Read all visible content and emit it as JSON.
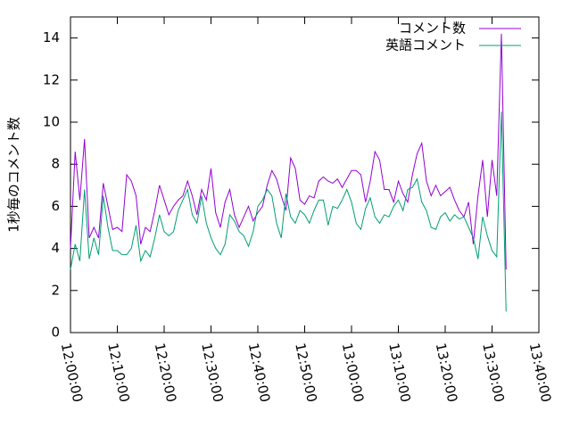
{
  "chart_data": {
    "type": "line",
    "ylabel": "1秒毎のコメント数",
    "x": [
      "12:00:00",
      "12:01:00",
      "12:02:00",
      "12:03:00",
      "12:04:00",
      "12:05:00",
      "12:06:00",
      "12:07:00",
      "12:08:00",
      "12:09:00",
      "12:10:00",
      "12:11:00",
      "12:12:00",
      "12:13:00",
      "12:14:00",
      "12:15:00",
      "12:16:00",
      "12:17:00",
      "12:18:00",
      "12:19:00",
      "12:20:00",
      "12:21:00",
      "12:22:00",
      "12:23:00",
      "12:24:00",
      "12:25:00",
      "12:26:00",
      "12:27:00",
      "12:28:00",
      "12:29:00",
      "12:30:00",
      "12:31:00",
      "12:32:00",
      "12:33:00",
      "12:34:00",
      "12:35:00",
      "12:36:00",
      "12:37:00",
      "12:38:00",
      "12:39:00",
      "12:40:00",
      "12:41:00",
      "12:42:00",
      "12:43:00",
      "12:44:00",
      "12:45:00",
      "12:46:00",
      "12:47:00",
      "12:48:00",
      "12:49:00",
      "12:50:00",
      "12:51:00",
      "12:52:00",
      "12:53:00",
      "12:54:00",
      "12:55:00",
      "12:56:00",
      "12:57:00",
      "12:58:00",
      "12:59:00",
      "13:00:00",
      "13:01:00",
      "13:02:00",
      "13:03:00",
      "13:04:00",
      "13:05:00",
      "13:06:00",
      "13:07:00",
      "13:08:00",
      "13:09:00",
      "13:10:00",
      "13:11:00",
      "13:12:00",
      "13:13:00",
      "13:14:00",
      "13:15:00",
      "13:16:00",
      "13:17:00",
      "13:18:00",
      "13:19:00",
      "13:20:00",
      "13:21:00",
      "13:22:00",
      "13:23:00",
      "13:24:00",
      "13:25:00",
      "13:26:00",
      "13:27:00",
      "13:28:00",
      "13:29:00",
      "13:30:00",
      "13:31:00",
      "13:32:00",
      "13:33:00"
    ],
    "series": [
      {
        "name": "コメント数",
        "color": "#9400d3",
        "values": [
          4.0,
          8.6,
          6.3,
          9.2,
          4.5,
          5.0,
          4.5,
          7.1,
          6.0,
          4.9,
          5.0,
          4.8,
          7.5,
          7.2,
          6.5,
          4.2,
          5.0,
          4.8,
          5.8,
          7.0,
          6.3,
          5.6,
          6.0,
          6.3,
          6.5,
          7.2,
          6.5,
          5.6,
          6.8,
          6.3,
          7.8,
          5.7,
          5.0,
          6.2,
          6.8,
          5.6,
          5.0,
          5.5,
          6.0,
          5.3,
          5.7,
          6.0,
          7.0,
          7.7,
          7.3,
          6.5,
          5.8,
          8.3,
          7.8,
          6.3,
          6.1,
          6.5,
          6.4,
          7.2,
          7.4,
          7.2,
          7.1,
          7.3,
          6.9,
          7.3,
          7.7,
          7.7,
          7.5,
          6.2,
          7.2,
          8.6,
          8.2,
          6.8,
          6.8,
          6.2,
          7.2,
          6.6,
          6.2,
          7.5,
          8.5,
          9.0,
          7.2,
          6.5,
          7.0,
          6.5,
          6.7,
          6.9,
          6.3,
          5.8,
          5.5,
          6.2,
          4.2,
          6.5,
          8.2,
          5.5,
          8.2,
          6.5,
          14.2,
          3.0
        ]
      },
      {
        "name": "英語コメント",
        "color": "#009e73",
        "values": [
          3.0,
          4.2,
          3.4,
          6.8,
          3.5,
          4.5,
          3.7,
          6.5,
          5.0,
          3.9,
          3.9,
          3.7,
          3.7,
          4.0,
          5.1,
          3.4,
          3.9,
          3.6,
          4.5,
          5.6,
          4.8,
          4.6,
          4.8,
          5.8,
          6.3,
          6.8,
          5.6,
          5.2,
          6.5,
          5.2,
          4.5,
          4.0,
          3.7,
          4.2,
          5.6,
          5.3,
          4.8,
          4.6,
          4.1,
          4.8,
          6.0,
          6.3,
          6.8,
          6.5,
          5.2,
          4.5,
          6.6,
          5.5,
          5.2,
          5.8,
          5.6,
          5.2,
          5.8,
          6.3,
          6.3,
          5.1,
          6.0,
          5.9,
          6.3,
          6.8,
          6.2,
          5.2,
          4.9,
          5.9,
          6.4,
          5.5,
          5.2,
          5.6,
          5.5,
          6.0,
          6.3,
          5.8,
          6.8,
          6.9,
          7.3,
          6.2,
          5.8,
          5.0,
          4.9,
          5.5,
          5.7,
          5.3,
          5.6,
          5.4,
          5.5,
          5.0,
          4.5,
          3.5,
          5.5,
          4.6,
          3.9,
          3.6,
          10.5,
          1.0
        ]
      }
    ],
    "xlim": [
      "12:00:00",
      "13:40:00"
    ],
    "xticks": [
      "12:00:00",
      "12:10:00",
      "12:20:00",
      "12:30:00",
      "12:40:00",
      "12:50:00",
      "13:00:00",
      "13:10:00",
      "13:20:00",
      "13:30:00",
      "13:40:00"
    ],
    "ylim": [
      0,
      15
    ],
    "yticks": [
      0,
      2,
      4,
      6,
      8,
      10,
      12,
      14
    ],
    "legend": "top-right"
  }
}
